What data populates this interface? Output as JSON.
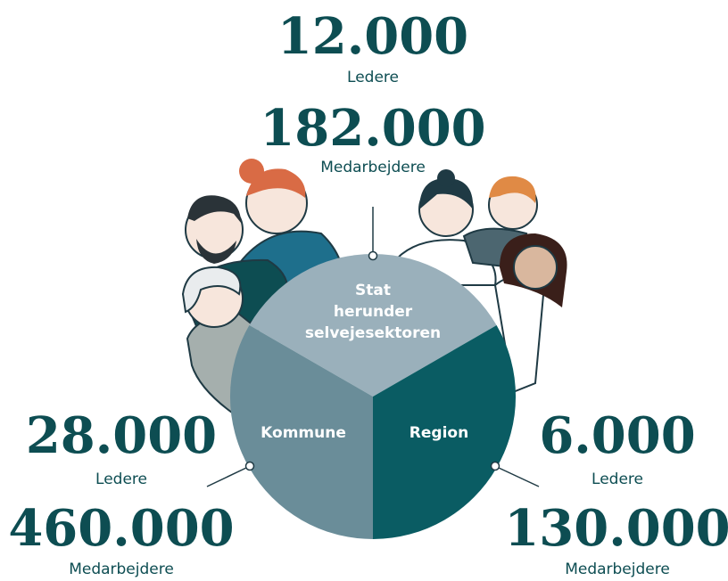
{
  "top": {
    "segment": [
      "Stat",
      "herunder",
      "selvejesektoren"
    ],
    "leaders": "12.000",
    "leaders_label": "Ledere",
    "employees": "182.000",
    "employees_label": "Medarbejdere"
  },
  "left": {
    "segment": [
      "Kommune"
    ],
    "leaders": "28.000",
    "leaders_label": "Ledere",
    "employees": "460.000",
    "employees_label": "Medarbejdere"
  },
  "right": {
    "segment": [
      "Region"
    ],
    "leaders": "6.000",
    "leaders_label": "Ledere",
    "employees": "130.000",
    "employees_label": "Medarbejdere"
  }
}
